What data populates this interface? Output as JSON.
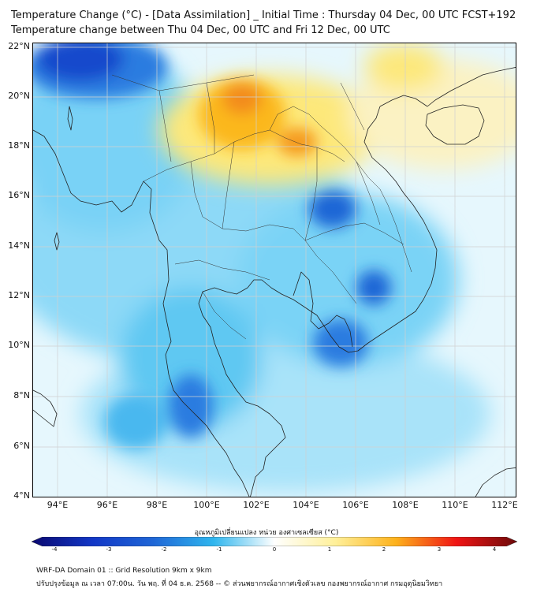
{
  "title": {
    "line1": "Temperature Change (°C) - [Data Assimilation] _ Initial Time : Thursday 04 Dec, 00 UTC FCST+192",
    "line2": "Temperature change between Thu 04 Dec, 00 UTC and Fri 12 Dec, 00 UTC"
  },
  "map": {
    "lon_range": [
      93,
      112.5
    ],
    "lat_range": [
      4,
      22.3
    ],
    "grid": true,
    "lat_labels": [
      "22°N",
      "20°N",
      "18°N",
      "16°N",
      "14°N",
      "12°N",
      "10°N",
      "8°N",
      "6°N",
      "4°N"
    ],
    "lon_labels": [
      "94°E",
      "96°E",
      "98°E",
      "100°E",
      "102°E",
      "104°E",
      "106°E",
      "108°E",
      "110°E",
      "112°E"
    ],
    "colors": {
      "background_field": "#e6f7fd",
      "warm_strong": "#f38b1c",
      "warm": "#fdd11c",
      "warm_light": "#fef6c0",
      "cool": "#2fb6ee",
      "cool_strong": "#1f66d6",
      "cool_deep": "#1237c6"
    }
  },
  "colorbar": {
    "label": "อุณหภูมิเปลี่ยนแปลง หน่วย องศาเซลเซียส (°C)",
    "min": -4,
    "max": 4,
    "ticks": [
      "-4",
      "-3",
      "-2",
      "-1",
      "0",
      "1",
      "2",
      "3",
      "4"
    ],
    "colors": [
      "#0a0870",
      "#1237c6",
      "#1f66d6",
      "#2fb6ee",
      "#ffffff",
      "#fff09a",
      "#fdb21c",
      "#f01414",
      "#6b0a0a"
    ]
  },
  "footer": {
    "line1": "WRF-DA Domain 01 :: Grid Resolution 9km x 9km",
    "line2": "ปรับปรุงข้อมูล ณ เวลา 07:00น. วัน พฤ. ที่ 04 ธ.ค. 2568 -- © ส่วนพยากรณ์อากาศเชิงตัวเลข กองพยากรณ์อากาศ กรมอุตุนิยมวิทยา"
  }
}
